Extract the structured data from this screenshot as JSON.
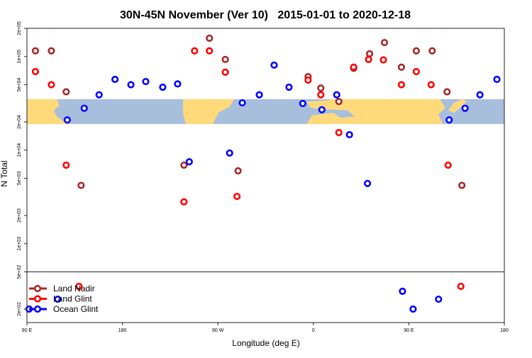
{
  "chart_data": {
    "type": "scatter",
    "title": "30N-45N November (Ver 10)   2015-01-01 to 2020-12-18",
    "xlabel": "Longitude (deg E)",
    "ylabel": "N Total",
    "x_note": "longitude unwrapped in degrees east, 90 to 540 (90E → 180 → 90W → 0 → 90E → 180)",
    "xlim": [
      90,
      540
    ],
    "yscale": "log",
    "ylim": [
      150,
      200000
    ],
    "x_ticks": [
      {
        "value": 90,
        "label": "90 E"
      },
      {
        "value": 180,
        "label": "180"
      },
      {
        "value": 270,
        "label": "90 W"
      },
      {
        "value": 360,
        "label": "0"
      },
      {
        "value": 450,
        "label": "90 E"
      },
      {
        "value": 540,
        "label": "180"
      }
    ],
    "y_ticks": [
      {
        "value": 200000,
        "label": "2e+05"
      },
      {
        "value": 100000,
        "label": "1e+05"
      },
      {
        "value": 50000,
        "label": "5e+04"
      },
      {
        "value": 20000,
        "label": "2e+04"
      },
      {
        "value": 10000,
        "label": "1e+04"
      },
      {
        "value": 5000,
        "label": "5e+03"
      },
      {
        "value": 2000,
        "label": "2e+03"
      },
      {
        "value": 1000,
        "label": "1e+03"
      },
      {
        "value": 500,
        "label": "5e+02"
      },
      {
        "value": 200,
        "label": "2e+02"
      }
    ],
    "panel_split_value": 500,
    "map_band": {
      "ymin": 19000,
      "ymax": 35000,
      "land_color": "#FFD97A",
      "ocean_color": "#A7BEDC"
    },
    "legend": {
      "placement": "bottom-left"
    },
    "series": [
      {
        "name": "Land Nadir",
        "color": "#A52A2A",
        "points": [
          [
            98,
            115000
          ],
          [
            113,
            115000
          ],
          [
            127,
            42000
          ],
          [
            141,
            4200
          ],
          [
            238,
            6900
          ],
          [
            262,
            157000
          ],
          [
            277,
            93000
          ],
          [
            289,
            6000
          ],
          [
            355,
            61000
          ],
          [
            367,
            46000
          ],
          [
            384,
            33000
          ],
          [
            398,
            75000
          ],
          [
            413,
            107000
          ],
          [
            427,
            141000
          ],
          [
            443,
            77000
          ],
          [
            457,
            115000
          ],
          [
            472,
            115000
          ],
          [
            486,
            42000
          ],
          [
            500,
            4200
          ]
        ]
      },
      {
        "name": "Land Glint",
        "color": "#FF0000",
        "points": [
          [
            98,
            69000
          ],
          [
            113,
            50000
          ],
          [
            127,
            6900
          ],
          [
            139,
            350
          ],
          [
            238,
            2800
          ],
          [
            248,
            115000
          ],
          [
            262,
            115000
          ],
          [
            277,
            68000
          ],
          [
            288,
            3200
          ],
          [
            355,
            56000
          ],
          [
            367,
            39000
          ],
          [
            384,
            15400
          ],
          [
            398,
            77000
          ],
          [
            412,
            93000
          ],
          [
            426,
            92000
          ],
          [
            443,
            50000
          ],
          [
            457,
            69000
          ],
          [
            471,
            50000
          ],
          [
            487,
            6900
          ],
          [
            499,
            350
          ]
        ]
      },
      {
        "name": "Ocean Glint",
        "color": "#0000FF",
        "points": [
          [
            92,
            200
          ],
          [
            119,
            255
          ],
          [
            128,
            21000
          ],
          [
            144,
            28000
          ],
          [
            158,
            39000
          ],
          [
            173,
            57000
          ],
          [
            188,
            50000
          ],
          [
            202,
            54000
          ],
          [
            218,
            47000
          ],
          [
            232,
            51000
          ],
          [
            243,
            7500
          ],
          [
            281,
            9300
          ],
          [
            293,
            32000
          ],
          [
            309,
            39000
          ],
          [
            323,
            81000
          ],
          [
            337,
            47000
          ],
          [
            350,
            31500
          ],
          [
            368,
            27000
          ],
          [
            382,
            39000
          ],
          [
            394,
            14600
          ],
          [
            411,
            4400
          ],
          [
            444,
            310
          ],
          [
            454,
            200
          ],
          [
            478,
            255
          ],
          [
            488,
            21000
          ],
          [
            503,
            28000
          ],
          [
            517,
            39000
          ],
          [
            533,
            57000
          ]
        ]
      }
    ]
  }
}
